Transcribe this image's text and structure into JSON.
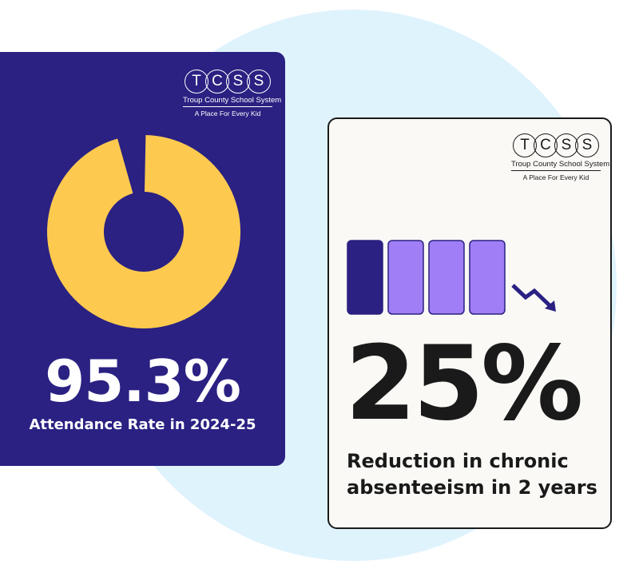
{
  "colors": {
    "navy": "#2a2182",
    "gold": "#fdca4f",
    "lavender": "#a07ef5",
    "light_blue_bg": "#dff3fd",
    "card_light": "#faf9f6",
    "ink": "#1a1a1a"
  },
  "logo": {
    "letters": [
      "T",
      "C",
      "S",
      "S"
    ],
    "name": "Troup County School System",
    "tagline": "A Place For Every Kid"
  },
  "attendance_card": {
    "value": "95.3%",
    "caption": "Attendance Rate in 2024-25",
    "donut_fill_fraction": 0.953
  },
  "absenteeism_card": {
    "value": "25%",
    "caption_line1": "Reduction in chronic",
    "caption_line2": "absenteeism in 2 years",
    "bars_total": 4,
    "bars_highlighted": 1,
    "trend_icon": "trend-down-arrow-icon"
  }
}
